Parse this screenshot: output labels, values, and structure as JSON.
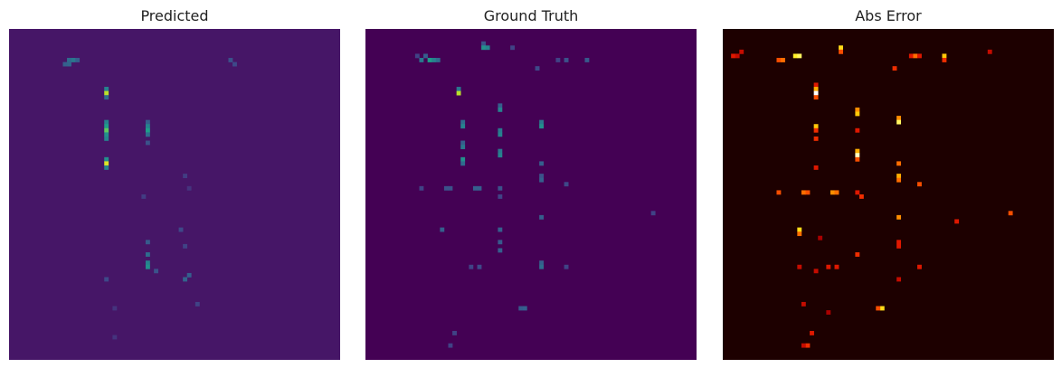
{
  "chart_data": [
    {
      "type": "heatmap",
      "title": "Predicted",
      "colormap": "viridis",
      "axes_visible": false,
      "grid_size": [
        80,
        80
      ],
      "value_range": [
        0,
        1
      ],
      "background_value": 0.06,
      "hotspots": [
        {
          "row": 7,
          "col": 14,
          "value": 0.35
        },
        {
          "row": 7,
          "col": 15,
          "value": 0.4
        },
        {
          "row": 7,
          "col": 16,
          "value": 0.3
        },
        {
          "row": 8,
          "col": 13,
          "value": 0.3
        },
        {
          "row": 8,
          "col": 14,
          "value": 0.32
        },
        {
          "row": 7,
          "col": 53,
          "value": 0.25
        },
        {
          "row": 8,
          "col": 54,
          "value": 0.22
        },
        {
          "row": 14,
          "col": 23,
          "value": 0.45
        },
        {
          "row": 15,
          "col": 23,
          "value": 0.9
        },
        {
          "row": 16,
          "col": 23,
          "value": 0.35
        },
        {
          "row": 22,
          "col": 23,
          "value": 0.45
        },
        {
          "row": 23,
          "col": 23,
          "value": 0.55
        },
        {
          "row": 24,
          "col": 23,
          "value": 0.75
        },
        {
          "row": 25,
          "col": 23,
          "value": 0.5
        },
        {
          "row": 26,
          "col": 23,
          "value": 0.45
        },
        {
          "row": 22,
          "col": 33,
          "value": 0.3
        },
        {
          "row": 23,
          "col": 33,
          "value": 0.45
        },
        {
          "row": 24,
          "col": 33,
          "value": 0.55
        },
        {
          "row": 25,
          "col": 33,
          "value": 0.35
        },
        {
          "row": 27,
          "col": 33,
          "value": 0.25
        },
        {
          "row": 31,
          "col": 23,
          "value": 0.5
        },
        {
          "row": 32,
          "col": 23,
          "value": 0.95
        },
        {
          "row": 33,
          "col": 23,
          "value": 0.45
        },
        {
          "row": 35,
          "col": 42,
          "value": 0.18
        },
        {
          "row": 38,
          "col": 43,
          "value": 0.15
        },
        {
          "row": 40,
          "col": 32,
          "value": 0.18
        },
        {
          "row": 48,
          "col": 41,
          "value": 0.22
        },
        {
          "row": 51,
          "col": 33,
          "value": 0.28
        },
        {
          "row": 52,
          "col": 42,
          "value": 0.2
        },
        {
          "row": 54,
          "col": 33,
          "value": 0.35
        },
        {
          "row": 56,
          "col": 33,
          "value": 0.45
        },
        {
          "row": 57,
          "col": 33,
          "value": 0.5
        },
        {
          "row": 58,
          "col": 35,
          "value": 0.25
        },
        {
          "row": 59,
          "col": 43,
          "value": 0.3
        },
        {
          "row": 60,
          "col": 42,
          "value": 0.32
        },
        {
          "row": 60,
          "col": 23,
          "value": 0.22
        },
        {
          "row": 66,
          "col": 45,
          "value": 0.2
        },
        {
          "row": 67,
          "col": 25,
          "value": 0.15
        },
        {
          "row": 74,
          "col": 25,
          "value": 0.15
        }
      ]
    },
    {
      "type": "heatmap",
      "title": "Ground Truth",
      "colormap": "viridis",
      "axes_visible": false,
      "grid_size": [
        80,
        80
      ],
      "value_range": [
        0,
        1
      ],
      "background_value": 0.0,
      "hotspots": [
        {
          "row": 3,
          "col": 28,
          "value": 0.25
        },
        {
          "row": 4,
          "col": 28,
          "value": 0.5
        },
        {
          "row": 4,
          "col": 29,
          "value": 0.45
        },
        {
          "row": 4,
          "col": 35,
          "value": 0.2
        },
        {
          "row": 6,
          "col": 12,
          "value": 0.2
        },
        {
          "row": 6,
          "col": 14,
          "value": 0.3
        },
        {
          "row": 7,
          "col": 13,
          "value": 0.4
        },
        {
          "row": 7,
          "col": 15,
          "value": 0.55
        },
        {
          "row": 7,
          "col": 16,
          "value": 0.45
        },
        {
          "row": 7,
          "col": 17,
          "value": 0.35
        },
        {
          "row": 7,
          "col": 46,
          "value": 0.2
        },
        {
          "row": 7,
          "col": 48,
          "value": 0.25
        },
        {
          "row": 7,
          "col": 53,
          "value": 0.28
        },
        {
          "row": 9,
          "col": 41,
          "value": 0.22
        },
        {
          "row": 14,
          "col": 22,
          "value": 0.4
        },
        {
          "row": 15,
          "col": 22,
          "value": 0.9
        },
        {
          "row": 18,
          "col": 32,
          "value": 0.3
        },
        {
          "row": 19,
          "col": 32,
          "value": 0.45
        },
        {
          "row": 22,
          "col": 23,
          "value": 0.35
        },
        {
          "row": 23,
          "col": 23,
          "value": 0.45
        },
        {
          "row": 22,
          "col": 42,
          "value": 0.4
        },
        {
          "row": 23,
          "col": 42,
          "value": 0.5
        },
        {
          "row": 24,
          "col": 32,
          "value": 0.4
        },
        {
          "row": 25,
          "col": 32,
          "value": 0.45
        },
        {
          "row": 27,
          "col": 23,
          "value": 0.3
        },
        {
          "row": 28,
          "col": 23,
          "value": 0.4
        },
        {
          "row": 29,
          "col": 32,
          "value": 0.4
        },
        {
          "row": 30,
          "col": 32,
          "value": 0.45
        },
        {
          "row": 31,
          "col": 23,
          "value": 0.5
        },
        {
          "row": 32,
          "col": 23,
          "value": 0.35
        },
        {
          "row": 32,
          "col": 42,
          "value": 0.3
        },
        {
          "row": 35,
          "col": 42,
          "value": 0.25
        },
        {
          "row": 36,
          "col": 42,
          "value": 0.3
        },
        {
          "row": 38,
          "col": 13,
          "value": 0.2
        },
        {
          "row": 38,
          "col": 19,
          "value": 0.25
        },
        {
          "row": 38,
          "col": 20,
          "value": 0.25
        },
        {
          "row": 38,
          "col": 26,
          "value": 0.3
        },
        {
          "row": 38,
          "col": 27,
          "value": 0.3
        },
        {
          "row": 38,
          "col": 32,
          "value": 0.25
        },
        {
          "row": 37,
          "col": 48,
          "value": 0.22
        },
        {
          "row": 40,
          "col": 32,
          "value": 0.2
        },
        {
          "row": 44,
          "col": 69,
          "value": 0.2
        },
        {
          "row": 45,
          "col": 42,
          "value": 0.3
        },
        {
          "row": 48,
          "col": 18,
          "value": 0.3
        },
        {
          "row": 48,
          "col": 32,
          "value": 0.3
        },
        {
          "row": 51,
          "col": 32,
          "value": 0.28
        },
        {
          "row": 53,
          "col": 32,
          "value": 0.3
        },
        {
          "row": 56,
          "col": 42,
          "value": 0.3
        },
        {
          "row": 57,
          "col": 42,
          "value": 0.35
        },
        {
          "row": 57,
          "col": 25,
          "value": 0.2
        },
        {
          "row": 57,
          "col": 27,
          "value": 0.22
        },
        {
          "row": 57,
          "col": 48,
          "value": 0.2
        },
        {
          "row": 67,
          "col": 37,
          "value": 0.28
        },
        {
          "row": 67,
          "col": 38,
          "value": 0.3
        },
        {
          "row": 73,
          "col": 21,
          "value": 0.2
        },
        {
          "row": 76,
          "col": 20,
          "value": 0.2
        }
      ]
    },
    {
      "type": "heatmap",
      "title": "Abs Error",
      "colormap": "hot",
      "axes_visible": false,
      "grid_size": [
        80,
        80
      ],
      "value_range": [
        0,
        1
      ],
      "background_value": 0.03,
      "hotspots": [
        {
          "row": 4,
          "col": 28,
          "value": 0.7
        },
        {
          "row": 5,
          "col": 28,
          "value": 0.45
        },
        {
          "row": 5,
          "col": 4,
          "value": 0.3
        },
        {
          "row": 6,
          "col": 2,
          "value": 0.35
        },
        {
          "row": 6,
          "col": 3,
          "value": 0.3
        },
        {
          "row": 6,
          "col": 17,
          "value": 0.75
        },
        {
          "row": 6,
          "col": 18,
          "value": 0.8
        },
        {
          "row": 7,
          "col": 13,
          "value": 0.45
        },
        {
          "row": 7,
          "col": 14,
          "value": 0.5
        },
        {
          "row": 6,
          "col": 45,
          "value": 0.35
        },
        {
          "row": 6,
          "col": 46,
          "value": 0.5
        },
        {
          "row": 6,
          "col": 47,
          "value": 0.35
        },
        {
          "row": 6,
          "col": 53,
          "value": 0.65
        },
        {
          "row": 7,
          "col": 53,
          "value": 0.4
        },
        {
          "row": 5,
          "col": 64,
          "value": 0.3
        },
        {
          "row": 9,
          "col": 41,
          "value": 0.4
        },
        {
          "row": 13,
          "col": 22,
          "value": 0.35
        },
        {
          "row": 14,
          "col": 22,
          "value": 0.6
        },
        {
          "row": 15,
          "col": 22,
          "value": 1.0
        },
        {
          "row": 16,
          "col": 22,
          "value": 0.45
        },
        {
          "row": 19,
          "col": 32,
          "value": 0.55
        },
        {
          "row": 20,
          "col": 32,
          "value": 0.65
        },
        {
          "row": 21,
          "col": 42,
          "value": 0.55
        },
        {
          "row": 22,
          "col": 42,
          "value": 0.8
        },
        {
          "row": 23,
          "col": 22,
          "value": 0.65
        },
        {
          "row": 24,
          "col": 22,
          "value": 0.4
        },
        {
          "row": 24,
          "col": 32,
          "value": 0.35
        },
        {
          "row": 26,
          "col": 22,
          "value": 0.4
        },
        {
          "row": 29,
          "col": 32,
          "value": 0.6
        },
        {
          "row": 30,
          "col": 32,
          "value": 0.9
        },
        {
          "row": 31,
          "col": 32,
          "value": 0.45
        },
        {
          "row": 32,
          "col": 42,
          "value": 0.5
        },
        {
          "row": 33,
          "col": 22,
          "value": 0.35
        },
        {
          "row": 35,
          "col": 42,
          "value": 0.6
        },
        {
          "row": 36,
          "col": 42,
          "value": 0.5
        },
        {
          "row": 37,
          "col": 47,
          "value": 0.45
        },
        {
          "row": 39,
          "col": 13,
          "value": 0.45
        },
        {
          "row": 39,
          "col": 19,
          "value": 0.5
        },
        {
          "row": 39,
          "col": 20,
          "value": 0.45
        },
        {
          "row": 39,
          "col": 26,
          "value": 0.55
        },
        {
          "row": 39,
          "col": 27,
          "value": 0.5
        },
        {
          "row": 39,
          "col": 32,
          "value": 0.35
        },
        {
          "row": 40,
          "col": 33,
          "value": 0.4
        },
        {
          "row": 44,
          "col": 69,
          "value": 0.45
        },
        {
          "row": 45,
          "col": 42,
          "value": 0.55
        },
        {
          "row": 46,
          "col": 56,
          "value": 0.35
        },
        {
          "row": 48,
          "col": 18,
          "value": 0.7
        },
        {
          "row": 49,
          "col": 18,
          "value": 0.5
        },
        {
          "row": 50,
          "col": 23,
          "value": 0.25
        },
        {
          "row": 51,
          "col": 42,
          "value": 0.35
        },
        {
          "row": 52,
          "col": 42,
          "value": 0.35
        },
        {
          "row": 54,
          "col": 32,
          "value": 0.4
        },
        {
          "row": 57,
          "col": 18,
          "value": 0.3
        },
        {
          "row": 57,
          "col": 25,
          "value": 0.35
        },
        {
          "row": 57,
          "col": 27,
          "value": 0.35
        },
        {
          "row": 57,
          "col": 47,
          "value": 0.35
        },
        {
          "row": 58,
          "col": 22,
          "value": 0.3
        },
        {
          "row": 60,
          "col": 42,
          "value": 0.3
        },
        {
          "row": 66,
          "col": 19,
          "value": 0.3
        },
        {
          "row": 67,
          "col": 38,
          "value": 0.7
        },
        {
          "row": 67,
          "col": 37,
          "value": 0.45
        },
        {
          "row": 68,
          "col": 25,
          "value": 0.25
        },
        {
          "row": 73,
          "col": 21,
          "value": 0.35
        },
        {
          "row": 76,
          "col": 20,
          "value": 0.4
        },
        {
          "row": 76,
          "col": 19,
          "value": 0.3
        }
      ]
    }
  ]
}
